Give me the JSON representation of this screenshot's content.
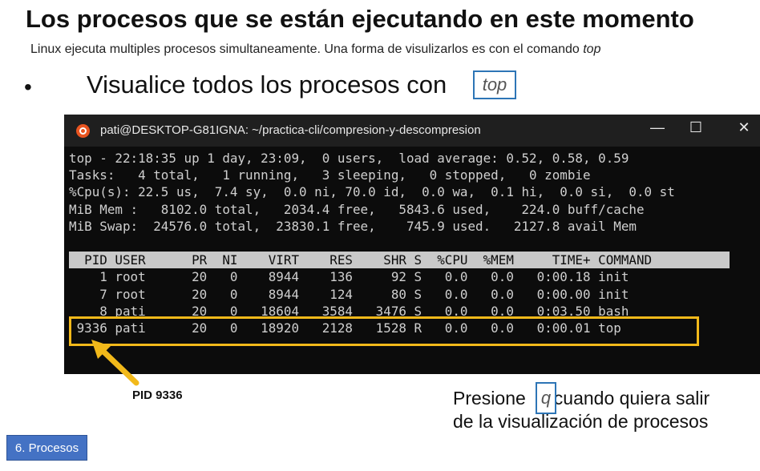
{
  "slide": {
    "title": "Los procesos que se están ejecutando en este momento",
    "subtitle_text": "Linux ejecuta multiples procesos simultaneamente. Una forma de visulizarlos es con el comando ",
    "subtitle_cmd": "top",
    "bullet_symbol": "•",
    "bullet_text": "Visualice todos los procesos con",
    "bullet_cmd": "top",
    "pid_label": "PID 9336",
    "press_line1_a": "Presione",
    "press_key": "q",
    "press_line1_b": "cuando quiera salir",
    "press_line2": "de la visualización de procesos",
    "nav_tab": "6. Procesos"
  },
  "terminal": {
    "window_title": "pati@DESKTOP-G81IGNA: ~/practica-cli/compresion-y-descompresion",
    "minimize_glyph": "—",
    "maximize_glyph": "☐",
    "close_glyph": "✕",
    "summary": [
      "top - 22:18:35 up 1 day, 23:09,  0 users,  load average: 0.52, 0.58, 0.59",
      "Tasks:   4 total,   1 running,   3 sleeping,   0 stopped,   0 zombie",
      "%Cpu(s): 22.5 us,  7.4 sy,  0.0 ni, 70.0 id,  0.0 wa,  0.1 hi,  0.0 si,  0.0 st",
      "MiB Mem :   8102.0 total,   2034.4 free,   5843.6 used,    224.0 buff/cache",
      "MiB Swap:  24576.0 total,  23830.1 free,    745.9 used.   2127.8 avail Mem"
    ],
    "header": "  PID USER      PR  NI    VIRT    RES    SHR S  %CPU  %MEM     TIME+ COMMAND",
    "processes": [
      "    1 root      20   0    8944    136     92 S   0.0   0.0   0:00.18 init",
      "    7 root      20   0    8944    124     80 S   0.0   0.0   0:00.00 init",
      "    8 pati      20   0   18604   3584   3476 S   0.0   0.0   0:03.50 bash",
      " 9336 pati      20   0   18920   2128   1528 R   0.0   0.0   0:00.01 top"
    ]
  },
  "colors": {
    "highlight": "#f2b91a",
    "accent_blue": "#2d75b6",
    "tab_blue": "#4472c4"
  }
}
